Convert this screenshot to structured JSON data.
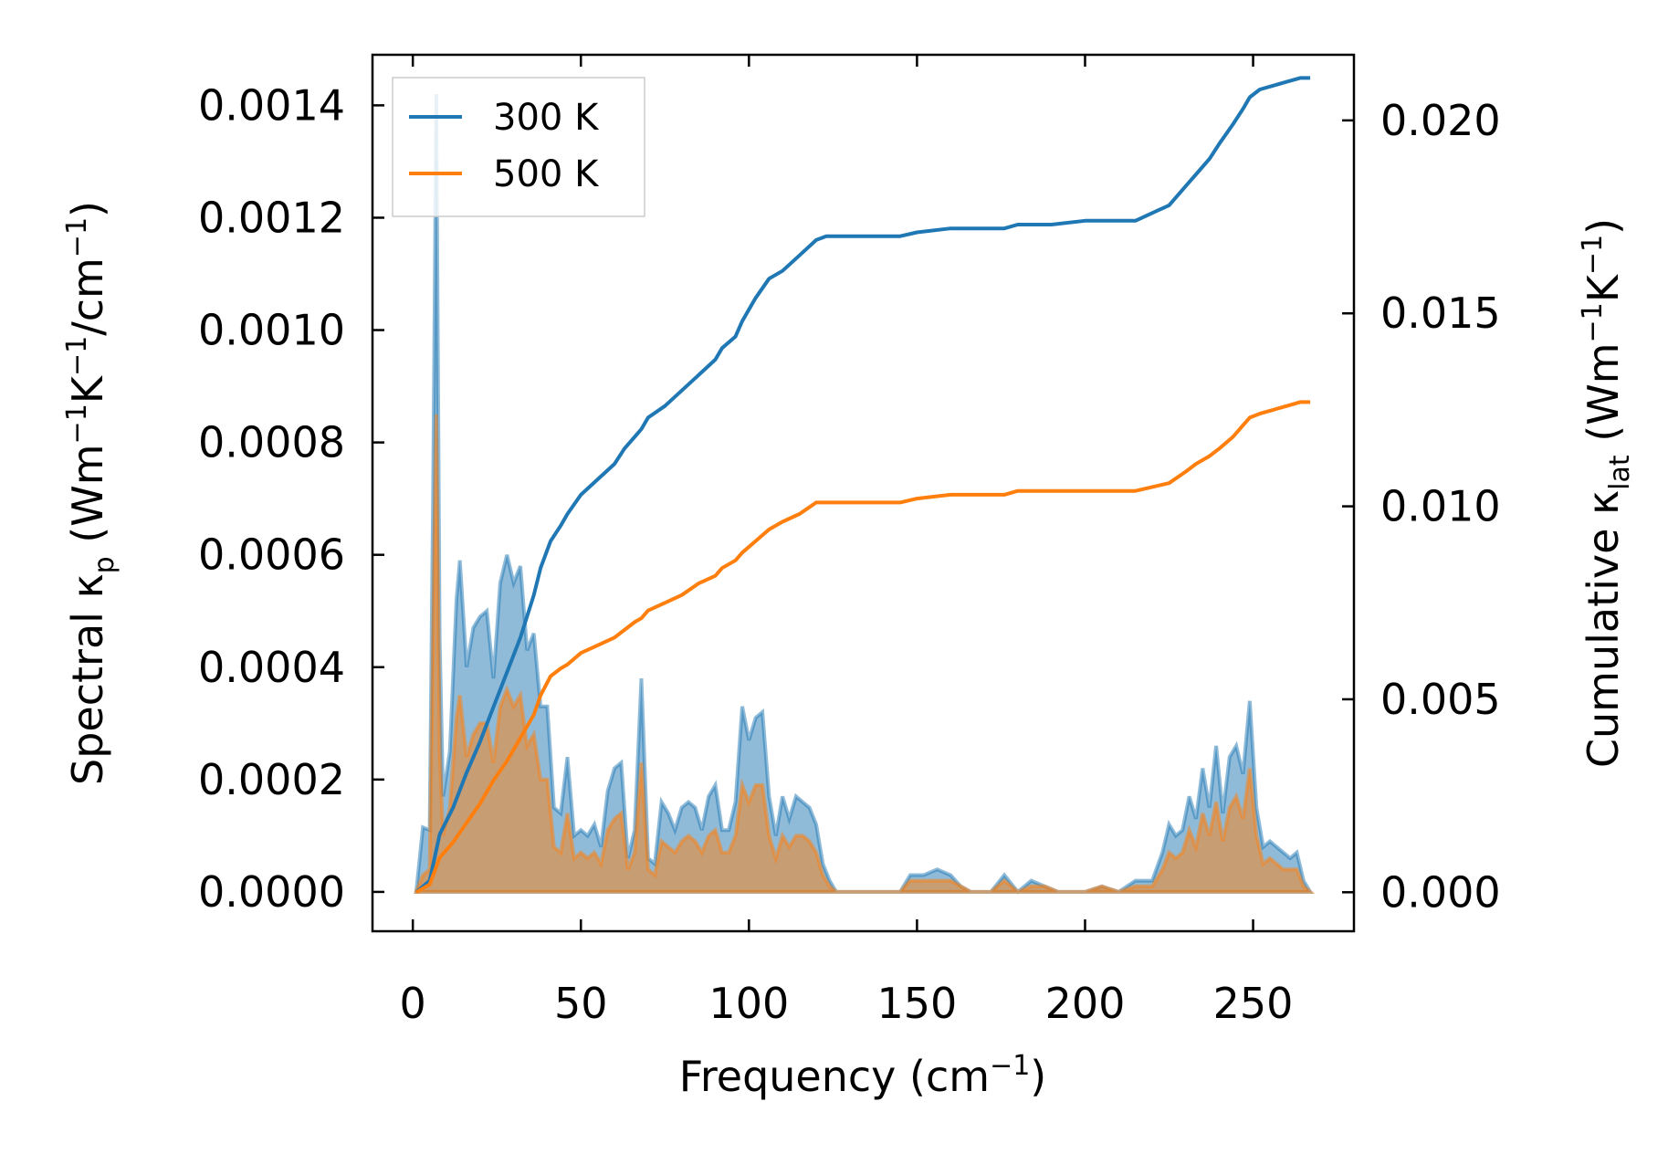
{
  "chart_data": {
    "type": "area",
    "title": "",
    "xlabel": {
      "main": "Frequency (cm",
      "sup": "−1",
      "tail": ")"
    },
    "ylabel_left": {
      "a": "Spectral κ",
      "a_sub": "p",
      "b": " (Wm",
      "b_sup": "−1",
      "c": "K",
      "c_sup": "−1",
      "d": "/cm",
      "d_sup": "−1",
      "e": ")"
    },
    "ylabel_right": {
      "a": "Cumulative κ",
      "a_sub": "lat",
      "b": " (Wm",
      "b_sup": "−1",
      "c": "K",
      "c_sup": "−1",
      "d": ")"
    },
    "xlim": [
      -12,
      280
    ],
    "ylim_left": [
      -7e-05,
      0.00149
    ],
    "ylim_right": [
      -0.00101,
      0.0217
    ],
    "x_ticks": [
      0,
      50,
      100,
      150,
      200,
      250
    ],
    "x_tick_labels": [
      "0",
      "50",
      "100",
      "150",
      "200",
      "250"
    ],
    "y_left_ticks": [
      0,
      0.0002,
      0.0004,
      0.0006,
      0.0008,
      0.001,
      0.0012,
      0.0014
    ],
    "y_left_tick_labels": [
      "0.0000",
      "0.0002",
      "0.0004",
      "0.0006",
      "0.0008",
      "0.0010",
      "0.0012",
      "0.0014"
    ],
    "y_right_ticks": [
      0,
      0.005,
      0.01,
      0.015,
      0.02
    ],
    "y_right_tick_labels": [
      "0.000",
      "0.005",
      "0.010",
      "0.015",
      "0.020"
    ],
    "legend": {
      "position": "upper left",
      "entries": [
        "300 K",
        "500 K"
      ]
    },
    "colors": {
      "t300": "#1f77b4",
      "t500": "#ff7f0e"
    },
    "spectral": {
      "x": [
        1,
        3,
        5,
        6,
        7,
        8,
        9,
        11,
        13,
        14,
        16,
        18,
        20,
        22,
        24,
        26,
        28,
        30,
        32,
        34,
        36,
        38,
        40,
        42,
        44,
        46,
        48,
        50,
        52,
        54,
        56,
        58,
        60,
        62,
        64,
        66,
        68,
        70,
        72,
        74,
        76,
        78,
        80,
        82,
        84,
        86,
        88,
        90,
        92,
        94,
        96,
        98,
        100,
        102,
        104,
        106,
        108,
        110,
        112,
        114,
        116,
        118,
        120,
        122,
        124,
        126,
        130,
        145,
        148,
        152,
        156,
        160,
        163,
        166,
        172,
        176,
        180,
        184,
        188,
        192,
        200,
        205,
        210,
        215,
        220,
        223,
        225,
        227,
        229,
        231,
        233,
        235,
        237,
        239,
        241,
        243,
        245,
        247,
        249,
        251,
        253,
        255,
        257,
        259,
        261,
        263,
        265,
        267
      ],
      "series": [
        {
          "name": "300 K",
          "values": [
            0,
            0.000115,
            0.00011,
            0.0007,
            0.00142,
            0.00045,
            0.00017,
            0.00025,
            0.00052,
            0.00059,
            0.0004,
            0.00047,
            0.00049,
            0.0005,
            0.00038,
            0.00055,
            0.0006,
            0.00055,
            0.00058,
            0.00043,
            0.00046,
            0.00033,
            0.00033,
            0.00015,
            0.00014,
            0.00024,
            0.0001,
            0.00011,
            0.0001,
            0.00012,
            8e-05,
            0.00018,
            0.00022,
            0.00023,
            6e-05,
            0.00011,
            0.00038,
            6e-05,
            5e-05,
            0.00016,
            0.00014,
            0.00011,
            0.00015,
            0.00016,
            0.00015,
            0.00011,
            0.00017,
            0.00019,
            0.00011,
            0.00011,
            0.00016,
            0.00033,
            0.00027,
            0.00031,
            0.00032,
            0.00017,
            0.0001,
            0.00017,
            0.00013,
            0.00017,
            0.00016,
            0.00015,
            0.00012,
            5e-05,
            2e-05,
            0,
            0,
            0,
            3e-05,
            3e-05,
            4e-05,
            3e-05,
            1e-05,
            0,
            0,
            3e-05,
            0,
            2e-05,
            1e-05,
            0,
            0,
            1e-05,
            0,
            2e-05,
            2e-05,
            7e-05,
            0.00012,
            0.0001,
            0.00011,
            0.00017,
            0.00013,
            0.00022,
            0.00015,
            0.00026,
            0.00014,
            0.00024,
            0.00026,
            0.00021,
            0.00034,
            0.00015,
            8e-05,
            9e-05,
            8e-05,
            7e-05,
            6e-05,
            7e-05,
            2e-05,
            0
          ]
        },
        {
          "name": "500 K",
          "values": [
            0,
            3e-05,
            4e-05,
            0.00045,
            0.00085,
            0.00025,
            0.0001,
            0.00015,
            0.00031,
            0.00035,
            0.00024,
            0.00028,
            0.0003,
            0.0003,
            0.00023,
            0.00033,
            0.00036,
            0.00033,
            0.00035,
            0.00026,
            0.00028,
            0.0002,
            0.0002,
            8e-05,
            7e-05,
            0.00014,
            6e-05,
            7e-05,
            6e-05,
            7e-05,
            5e-05,
            0.00011,
            0.00013,
            0.00014,
            4e-05,
            7e-05,
            0.00023,
            4e-05,
            3e-05,
            9e-05,
            8e-05,
            7e-05,
            9e-05,
            0.0001,
            9e-05,
            7e-05,
            0.0001,
            0.00011,
            7e-05,
            7e-05,
            0.0001,
            0.00019,
            0.00016,
            0.00019,
            0.00019,
            0.0001,
            6e-05,
            0.0001,
            8e-05,
            0.0001,
            0.0001,
            9e-05,
            7e-05,
            3e-05,
            1e-05,
            0,
            0,
            0,
            2e-05,
            2e-05,
            2e-05,
            2e-05,
            1e-05,
            0,
            0,
            2e-05,
            0,
            1e-05,
            1e-05,
            0,
            0,
            1e-05,
            0,
            1e-05,
            1e-05,
            4e-05,
            7e-05,
            6e-05,
            7e-05,
            0.00011,
            8e-05,
            0.00014,
            0.0001,
            0.00016,
            9e-05,
            0.00015,
            0.00017,
            0.00013,
            0.00022,
            0.0001,
            5e-05,
            6e-05,
            5e-05,
            4e-05,
            4e-05,
            4e-05,
            1e-05,
            0
          ]
        }
      ]
    },
    "cumulative": {
      "x": [
        1,
        5,
        8,
        12,
        16,
        20,
        24,
        28,
        32,
        36,
        38,
        41,
        44,
        46,
        50,
        55,
        60,
        63,
        66,
        68,
        70,
        75,
        80,
        85,
        90,
        92,
        96,
        98,
        102,
        106,
        110,
        115,
        120,
        123,
        130,
        140,
        145,
        150,
        160,
        170,
        176,
        180,
        190,
        200,
        210,
        215,
        220,
        225,
        230,
        233,
        237,
        240,
        244,
        247,
        249,
        252,
        256,
        260,
        264,
        267
      ],
      "series": [
        {
          "name": "300 K",
          "values": [
            0,
            0.0003,
            0.0015,
            0.0022,
            0.0031,
            0.0039,
            0.0048,
            0.0057,
            0.0066,
            0.0077,
            0.0084,
            0.0091,
            0.0095,
            0.0098,
            0.0103,
            0.0107,
            0.0111,
            0.0115,
            0.0118,
            0.012,
            0.0123,
            0.0126,
            0.013,
            0.0134,
            0.0138,
            0.0141,
            0.0144,
            0.0148,
            0.0154,
            0.0159,
            0.0161,
            0.0165,
            0.0169,
            0.017,
            0.017,
            0.017,
            0.017,
            0.0171,
            0.0172,
            0.0172,
            0.0172,
            0.0173,
            0.0173,
            0.0174,
            0.0174,
            0.0174,
            0.0176,
            0.0178,
            0.0183,
            0.0186,
            0.019,
            0.0194,
            0.0199,
            0.0203,
            0.0206,
            0.0208,
            0.0209,
            0.021,
            0.0211,
            0.0211
          ]
        },
        {
          "name": "500 K",
          "values": [
            0,
            0.0002,
            0.0009,
            0.0013,
            0.0018,
            0.0023,
            0.0029,
            0.0034,
            0.004,
            0.0046,
            0.0051,
            0.0056,
            0.0058,
            0.0059,
            0.0062,
            0.0064,
            0.0066,
            0.0068,
            0.007,
            0.0071,
            0.0073,
            0.0075,
            0.0077,
            0.008,
            0.0082,
            0.0084,
            0.0086,
            0.0088,
            0.0091,
            0.0094,
            0.0096,
            0.0098,
            0.0101,
            0.0101,
            0.0101,
            0.0101,
            0.0101,
            0.0102,
            0.0103,
            0.0103,
            0.0103,
            0.0104,
            0.0104,
            0.0104,
            0.0104,
            0.0104,
            0.0105,
            0.0106,
            0.0109,
            0.0111,
            0.0113,
            0.0115,
            0.0118,
            0.0121,
            0.0123,
            0.0124,
            0.0125,
            0.0126,
            0.0127,
            0.0127
          ]
        }
      ]
    }
  }
}
